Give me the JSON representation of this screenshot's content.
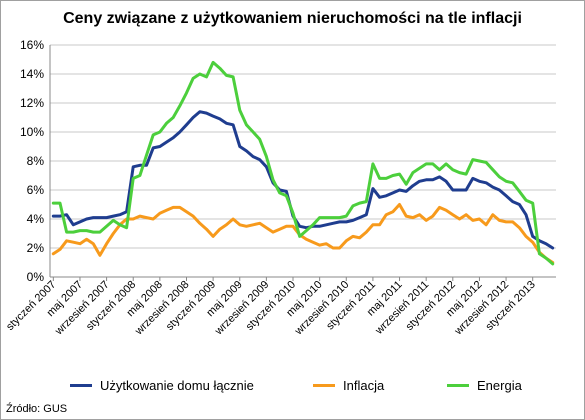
{
  "chart_data": {
    "type": "line",
    "title": "Ceny związane z użytkowaniem nieruchomości na tle inflacji",
    "source": "Źródło: GUS",
    "ylim": [
      0,
      16
    ],
    "yticks": [
      "0%",
      "2%",
      "4%",
      "6%",
      "8%",
      "10%",
      "12%",
      "14%",
      "16%"
    ],
    "ytick_values": [
      0,
      2,
      4,
      6,
      8,
      10,
      12,
      14,
      16
    ],
    "grid": true,
    "legend_position": "bottom",
    "x_tick_labels": [
      {
        "index": 0,
        "label": "styczeń 2007"
      },
      {
        "index": 4,
        "label": "maj 2007"
      },
      {
        "index": 8,
        "label": "wrzesień 2007"
      },
      {
        "index": 12,
        "label": "styczeń 2008"
      },
      {
        "index": 16,
        "label": "maj 2008"
      },
      {
        "index": 20,
        "label": "wrzesień 2008"
      },
      {
        "index": 24,
        "label": "styczeń 2009"
      },
      {
        "index": 28,
        "label": "maj 2009"
      },
      {
        "index": 32,
        "label": "wrzesień 2009"
      },
      {
        "index": 36,
        "label": "styczeń 2010"
      },
      {
        "index": 40,
        "label": "maj 2010"
      },
      {
        "index": 44,
        "label": "wrzesień 2010"
      },
      {
        "index": 48,
        "label": "styczeń 2011"
      },
      {
        "index": 52,
        "label": "maj 2011"
      },
      {
        "index": 56,
        "label": "wrzesień 2011"
      },
      {
        "index": 60,
        "label": "styczeń 2012"
      },
      {
        "index": 64,
        "label": "maj 2012"
      },
      {
        "index": 68,
        "label": "wrzesień 2012"
      },
      {
        "index": 72,
        "label": "styczeń 2013"
      }
    ],
    "series": [
      {
        "name": "Użytkowanie domu łącznie",
        "color": "#1f3d8f",
        "values": [
          4.2,
          4.2,
          4.3,
          3.6,
          3.8,
          4.0,
          4.1,
          4.1,
          4.1,
          4.2,
          4.3,
          4.5,
          7.6,
          7.7,
          7.7,
          8.9,
          9.0,
          9.3,
          9.6,
          10.0,
          10.5,
          11.0,
          11.4,
          11.3,
          11.1,
          10.9,
          10.6,
          10.5,
          9.0,
          8.7,
          8.3,
          8.1,
          7.6,
          6.5,
          6.0,
          5.9,
          4.2,
          3.5,
          3.4,
          3.5,
          3.5,
          3.6,
          3.7,
          3.8,
          3.8,
          3.9,
          4.1,
          4.3,
          6.1,
          5.5,
          5.6,
          5.8,
          6.0,
          5.9,
          6.3,
          6.6,
          6.7,
          6.7,
          6.9,
          6.6,
          6.0,
          6.0,
          6.0,
          6.8,
          6.6,
          6.5,
          6.2,
          6.0,
          5.6,
          5.2,
          5.0,
          4.3,
          2.8,
          2.5,
          2.3,
          2.0
        ]
      },
      {
        "name": "Inflacja",
        "color": "#f79a1c",
        "values": [
          1.6,
          1.9,
          2.5,
          2.4,
          2.3,
          2.6,
          2.3,
          1.5,
          2.3,
          3.0,
          3.6,
          4.0,
          4.0,
          4.2,
          4.1,
          4.0,
          4.4,
          4.6,
          4.8,
          4.8,
          4.5,
          4.2,
          3.7,
          3.3,
          2.8,
          3.3,
          3.6,
          4.0,
          3.6,
          3.5,
          3.6,
          3.7,
          3.4,
          3.1,
          3.3,
          3.5,
          3.5,
          2.9,
          2.6,
          2.4,
          2.2,
          2.3,
          2.0,
          2.0,
          2.5,
          2.8,
          2.7,
          3.1,
          3.6,
          3.6,
          4.3,
          4.5,
          5.0,
          4.2,
          4.1,
          4.3,
          3.9,
          4.2,
          4.8,
          4.6,
          4.3,
          4.0,
          4.3,
          3.9,
          4.0,
          3.6,
          4.3,
          3.9,
          3.8,
          3.8,
          3.4,
          2.8,
          2.4,
          1.7,
          1.3,
          1.0
        ]
      },
      {
        "name": "Energia",
        "color": "#4ccf3c",
        "values": [
          5.1,
          5.1,
          3.1,
          3.1,
          3.2,
          3.2,
          3.1,
          3.1,
          3.5,
          3.9,
          3.6,
          3.4,
          6.8,
          7.0,
          8.4,
          9.8,
          10.0,
          10.6,
          11.0,
          11.8,
          12.7,
          13.7,
          14.0,
          13.8,
          14.8,
          14.4,
          13.9,
          13.8,
          11.5,
          10.5,
          10.0,
          9.5,
          8.3,
          6.7,
          5.8,
          5.6,
          4.4,
          2.8,
          3.2,
          3.6,
          4.1,
          4.1,
          4.1,
          4.1,
          4.2,
          4.9,
          5.1,
          5.2,
          7.8,
          6.8,
          6.8,
          7.0,
          7.1,
          6.4,
          7.2,
          7.5,
          7.8,
          7.8,
          7.4,
          7.8,
          7.4,
          7.2,
          7.1,
          8.1,
          8.0,
          7.9,
          7.4,
          6.9,
          6.6,
          6.5,
          5.9,
          5.3,
          5.1,
          1.6,
          1.3,
          0.9
        ]
      }
    ]
  }
}
